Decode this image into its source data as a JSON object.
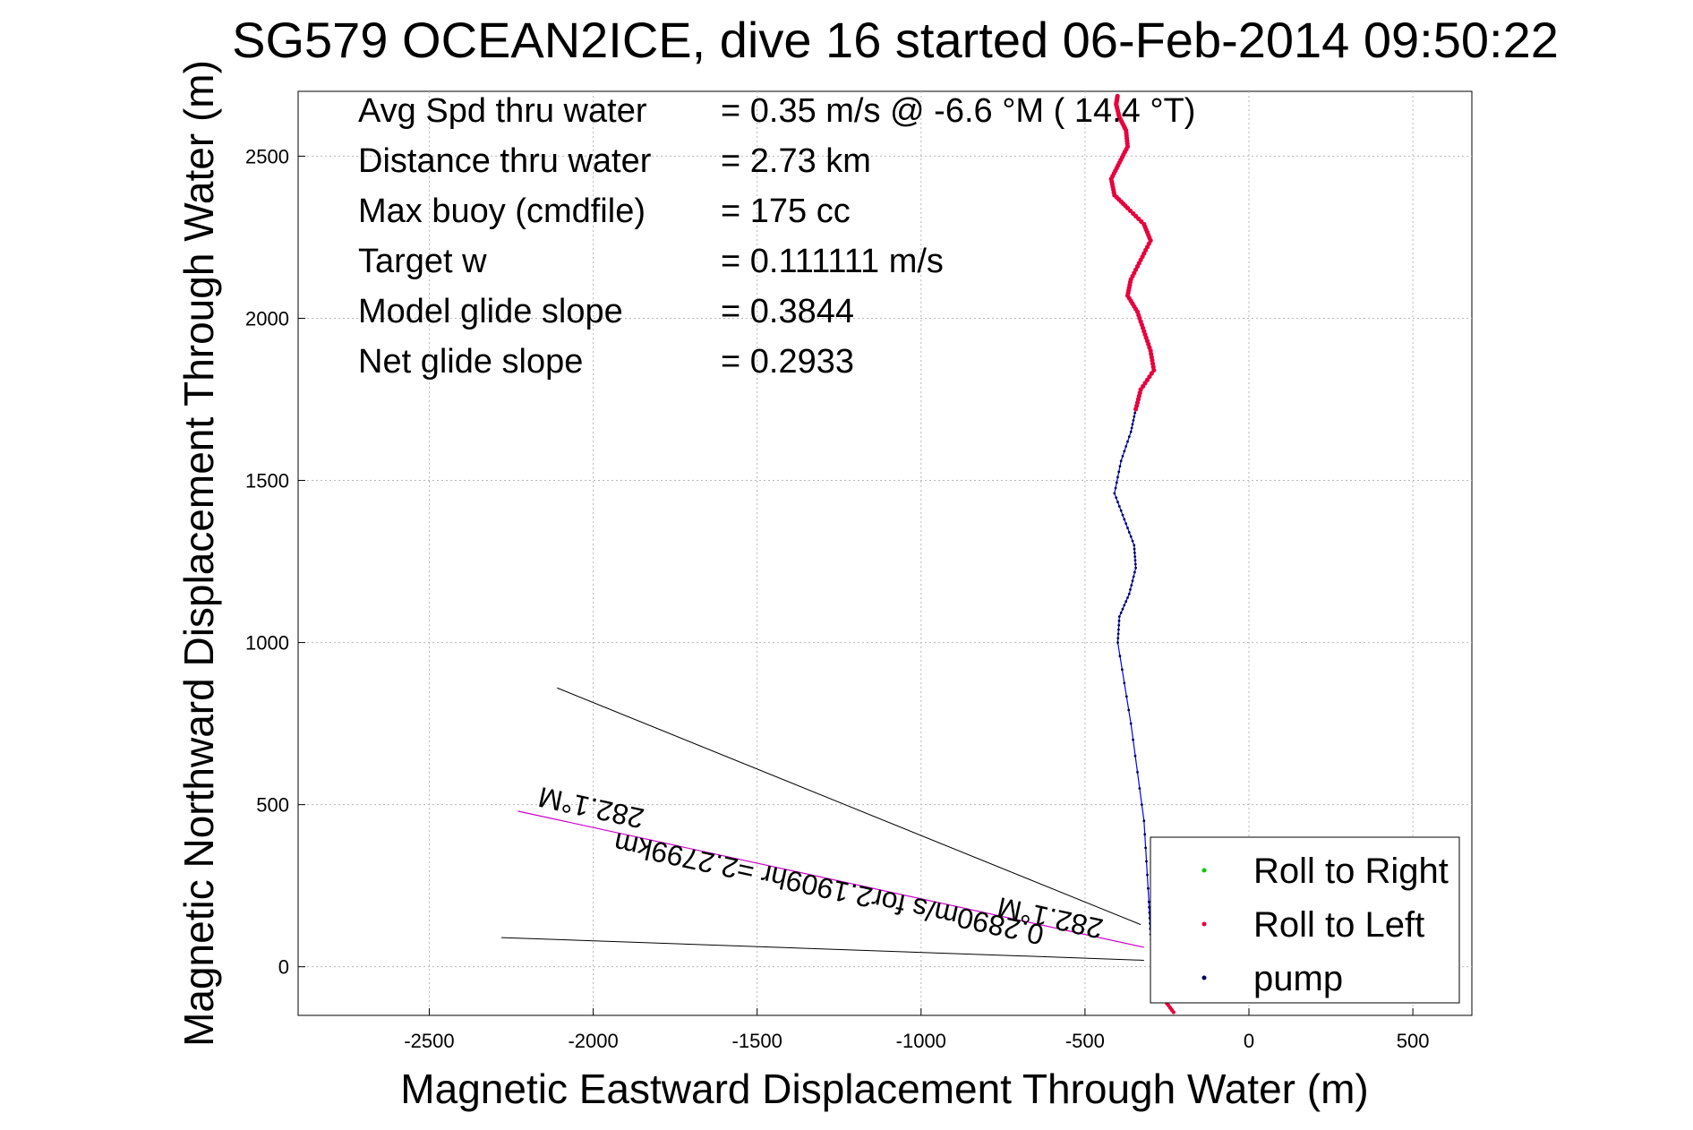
{
  "chart_data": {
    "type": "line",
    "title": "SG579 OCEAN2ICE, dive 16 started 06-Feb-2014 09:50:22",
    "xlabel": "Magnetic Eastward Displacement Through Water (m)",
    "ylabel": "Magnetic Northward Displacement Through Water (m)",
    "xlim": [
      -2900,
      680
    ],
    "ylim": [
      -150,
      2700
    ],
    "xticks": [
      -2500,
      -2000,
      -1500,
      -1000,
      -500,
      0,
      500
    ],
    "yticks": [
      0,
      500,
      1000,
      1500,
      2000,
      2500
    ],
    "grid": true,
    "legend_position": "bottom-right",
    "info_lines": [
      {
        "label": "Avg Spd thru water",
        "value": "=  0.35 m/s @  -6.6 °M ( 14.4 °T)"
      },
      {
        "label": "Distance thru water",
        "value": "=  2.73 km"
      },
      {
        "label": "Max buoy (cmdfile)",
        "value": "= 175 cc"
      },
      {
        "label": "Target w",
        "value": "= 0.111111 m/s"
      },
      {
        "label": "Model glide slope",
        "value": "= 0.3844"
      },
      {
        "label": "Net glide slope",
        "value": "= 0.2933"
      }
    ],
    "series": [
      {
        "name": "Roll to Right",
        "color": "#00cc00",
        "marker": "dot"
      },
      {
        "name": "Roll to Left",
        "color": "#e8003c",
        "marker": "dot"
      },
      {
        "name": "pump",
        "color": "#000055",
        "marker": "dot"
      }
    ],
    "track": {
      "color": "#0000ff",
      "x": [
        -230,
        -260,
        -280,
        -290,
        -300,
        -305,
        -320,
        -360,
        -400,
        -395,
        -365,
        -345,
        -350,
        -380,
        -410,
        -390,
        -360,
        -345,
        -330,
        -290,
        -300,
        -320,
        -340,
        -370,
        -360,
        -330,
        -300,
        -320,
        -370,
        -410,
        -420,
        -395,
        -370,
        -375,
        -395,
        -405,
        -400
      ],
      "y": [
        -140,
        -100,
        -60,
        0,
        100,
        200,
        450,
        750,
        1000,
        1080,
        1150,
        1230,
        1300,
        1380,
        1460,
        1560,
        1650,
        1720,
        1780,
        1840,
        1900,
        1960,
        2020,
        2070,
        2120,
        2180,
        2240,
        2290,
        2340,
        2380,
        2430,
        2480,
        2530,
        2580,
        2620,
        2660,
        2690
      ]
    },
    "annotations": [
      {
        "text": "0.2890m/s for2.1909hr =2.2799km",
        "x1": -2230,
        "y1": 480,
        "x2": -320,
        "y2": 60
      },
      {
        "text": "282.1°M",
        "x": -2000,
        "y": 520
      },
      {
        "text": "282.1°M",
        "x": -600,
        "y": 180
      }
    ],
    "black_lines": [
      {
        "x": [
          -2110,
          -330
        ],
        "y": [
          860,
          130
        ]
      },
      {
        "x": [
          -2280,
          -320
        ],
        "y": [
          90,
          20
        ]
      }
    ]
  }
}
